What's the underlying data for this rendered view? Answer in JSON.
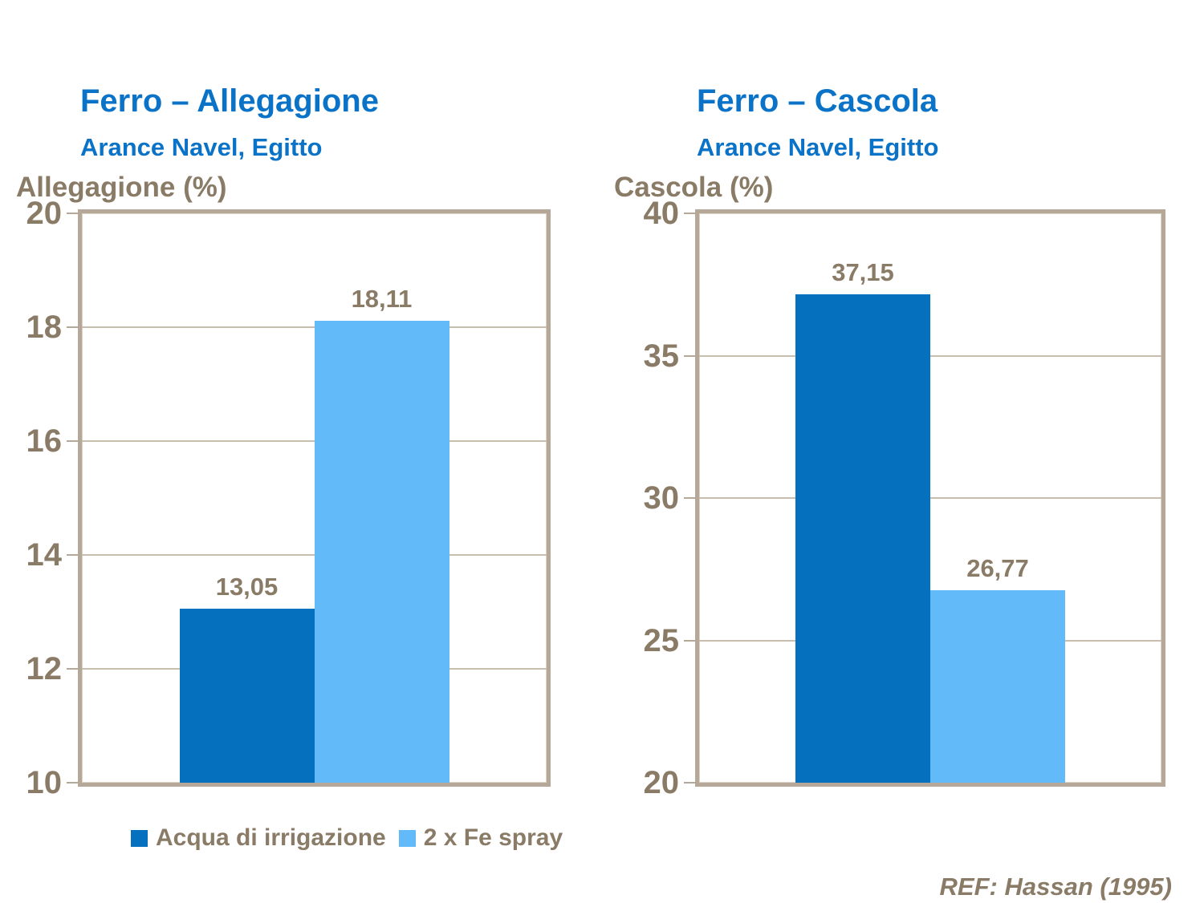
{
  "footer": "REF: Hassan (1995)",
  "colors": {
    "title_blue": "#0a73c7",
    "series_dark_blue": "#0470be",
    "series_light_blue": "#63baf8",
    "text_brown": "#8a7b67",
    "frame_tan": "#b5a898",
    "gridline_tan": "#c9bdae"
  },
  "chart_data": [
    {
      "type": "bar",
      "title": "Ferro – Allegagione",
      "subtitle": "Arance Navel, Egitto",
      "ylabel": "Allegagione (%)",
      "ylim": [
        10,
        20
      ],
      "yticks": [
        20,
        18,
        16,
        14,
        12,
        10
      ],
      "grid": true,
      "series": [
        {
          "name": "Acqua di irrigazione",
          "values": [
            13.05
          ],
          "value_labels": [
            "13,05"
          ],
          "color": "#0470be"
        },
        {
          "name": "2 x Fe spray",
          "values": [
            18.11
          ],
          "value_labels": [
            "18,11"
          ],
          "color": "#63baf8"
        }
      ]
    },
    {
      "type": "bar",
      "title": "Ferro – Cascola",
      "subtitle": "Arance Navel, Egitto",
      "ylabel": "Cascola (%)",
      "ylim": [
        20,
        40
      ],
      "yticks": [
        40,
        35,
        30,
        25,
        20
      ],
      "grid": true,
      "series": [
        {
          "name": "Acqua di irrigazione",
          "values": [
            37.15
          ],
          "value_labels": [
            "37,15"
          ],
          "color": "#0470be"
        },
        {
          "name": "2 x Fe spray",
          "values": [
            26.77
          ],
          "value_labels": [
            "26,77"
          ],
          "color": "#63baf8"
        }
      ]
    }
  ],
  "legend": {
    "items": [
      "Acqua di irrigazione",
      "2 x Fe spray"
    ]
  }
}
